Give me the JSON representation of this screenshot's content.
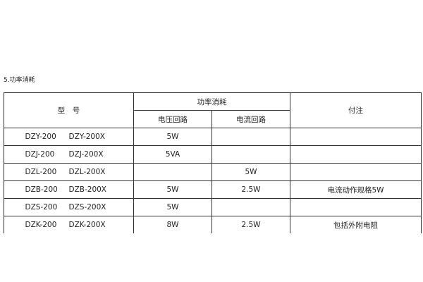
{
  "section_title": "5.功率消耗",
  "header": {
    "model": "型　号",
    "power": "功率消耗",
    "voltage": "电压回路",
    "current": "电流回路",
    "note": "付注"
  },
  "rows": [
    {
      "model_a": "DZY-200",
      "model_b": "DZY-200X",
      "voltage": "5W",
      "current": "",
      "note": ""
    },
    {
      "model_a": "DZJ-200",
      "model_b": "DZJ-200X",
      "voltage": "5VA",
      "current": "",
      "note": ""
    },
    {
      "model_a": "DZL-200",
      "model_b": "DZL-200X",
      "voltage": "",
      "current": "5W",
      "note": ""
    },
    {
      "model_a": "DZB-200",
      "model_b": "DZB-200X",
      "voltage": "5W",
      "current": "2.5W",
      "note": "电流动作规格5W"
    },
    {
      "model_a": "DZS-200",
      "model_b": "DZS-200X",
      "voltage": "5W",
      "current": "",
      "note": ""
    },
    {
      "model_a": "DZK-200",
      "model_b": "DZK-200X",
      "voltage": "8W",
      "current": "2.5W",
      "note": "包括外附电阻"
    }
  ]
}
